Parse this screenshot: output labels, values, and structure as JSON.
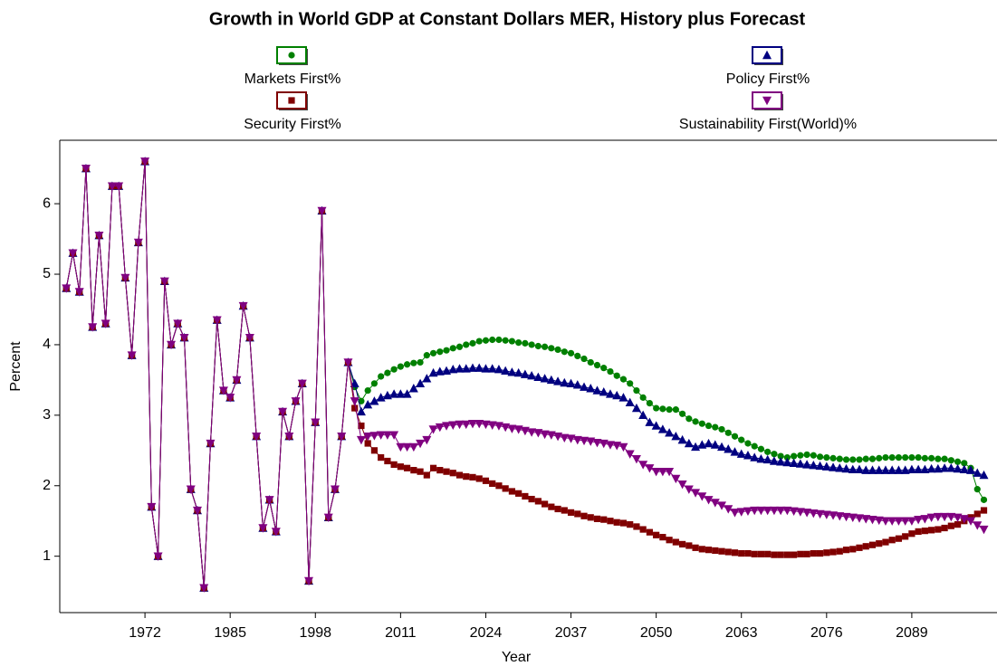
{
  "chart_data": {
    "type": "line",
    "title": "Growth in World GDP at Constant Dollars MER, History plus Forecast",
    "x_label": "Year",
    "y_label": "Percent",
    "xlim": [
      1959,
      2102
    ],
    "ylim": [
      0.2,
      6.9
    ],
    "xticks": [
      1972,
      1985,
      1998,
      2011,
      2024,
      2037,
      2050,
      2063,
      2076,
      2089
    ],
    "yticks": [
      1,
      2,
      3,
      4,
      5,
      6
    ],
    "legend": "top",
    "x": [
      1960,
      1961,
      1962,
      1963,
      1964,
      1965,
      1966,
      1967,
      1968,
      1969,
      1970,
      1971,
      1972,
      1973,
      1974,
      1975,
      1976,
      1977,
      1978,
      1979,
      1980,
      1981,
      1982,
      1983,
      1984,
      1985,
      1986,
      1987,
      1988,
      1989,
      1990,
      1991,
      1992,
      1993,
      1994,
      1995,
      1996,
      1997,
      1998,
      1999,
      2000,
      2001,
      2002,
      2003,
      2004,
      2005,
      2006,
      2007,
      2008,
      2009,
      2010,
      2011,
      2012,
      2013,
      2014,
      2015,
      2016,
      2017,
      2018,
      2019,
      2020,
      2021,
      2022,
      2023,
      2024,
      2025,
      2026,
      2027,
      2028,
      2029,
      2030,
      2031,
      2032,
      2033,
      2034,
      2035,
      2036,
      2037,
      2038,
      2039,
      2040,
      2041,
      2042,
      2043,
      2044,
      2045,
      2046,
      2047,
      2048,
      2049,
      2050,
      2051,
      2052,
      2053,
      2054,
      2055,
      2056,
      2057,
      2058,
      2059,
      2060,
      2061,
      2062,
      2063,
      2064,
      2065,
      2066,
      2067,
      2068,
      2069,
      2070,
      2071,
      2072,
      2073,
      2074,
      2075,
      2076,
      2077,
      2078,
      2079,
      2080,
      2081,
      2082,
      2083,
      2084,
      2085,
      2086,
      2087,
      2088,
      2089,
      2090,
      2091,
      2092,
      2093,
      2094,
      2095,
      2096,
      2097,
      2098,
      2099,
      2100
    ],
    "series": [
      {
        "name": "Markets First%",
        "color": "#008000",
        "marker": "circle",
        "values": [
          4.8,
          5.3,
          4.75,
          6.5,
          4.25,
          5.55,
          4.3,
          6.25,
          6.25,
          4.95,
          3.85,
          5.45,
          6.6,
          1.7,
          1.0,
          4.9,
          4.0,
          4.3,
          4.1,
          1.95,
          1.65,
          0.55,
          2.6,
          4.35,
          3.35,
          3.25,
          3.5,
          4.55,
          4.1,
          2.7,
          1.4,
          1.8,
          1.35,
          3.05,
          2.7,
          3.2,
          3.45,
          0.65,
          2.9,
          5.9,
          1.55,
          1.95,
          2.7,
          3.75,
          3.4,
          3.2,
          3.35,
          3.45,
          3.55,
          3.6,
          3.65,
          3.69,
          3.72,
          3.74,
          3.75,
          3.85,
          3.88,
          3.9,
          3.92,
          3.95,
          3.97,
          4.0,
          4.02,
          4.05,
          4.06,
          4.07,
          4.07,
          4.06,
          4.05,
          4.03,
          4.02,
          4.0,
          3.98,
          3.97,
          3.95,
          3.93,
          3.9,
          3.88,
          3.84,
          3.8,
          3.75,
          3.71,
          3.67,
          3.62,
          3.56,
          3.51,
          3.45,
          3.35,
          3.25,
          3.17,
          3.1,
          3.09,
          3.08,
          3.08,
          3.02,
          2.95,
          2.91,
          2.88,
          2.85,
          2.83,
          2.8,
          2.75,
          2.7,
          2.65,
          2.6,
          2.56,
          2.52,
          2.48,
          2.45,
          2.42,
          2.4,
          2.42,
          2.43,
          2.44,
          2.43,
          2.41,
          2.4,
          2.39,
          2.38,
          2.37,
          2.37,
          2.37,
          2.38,
          2.38,
          2.39,
          2.4,
          2.4,
          2.4,
          2.4,
          2.4,
          2.4,
          2.39,
          2.39,
          2.38,
          2.38,
          2.36,
          2.34,
          2.32,
          2.25,
          1.95,
          1.8
        ]
      },
      {
        "name": "Policy First%",
        "color": "#000080",
        "marker": "triangle-up",
        "values": [
          4.8,
          5.3,
          4.75,
          6.5,
          4.25,
          5.55,
          4.3,
          6.25,
          6.25,
          4.95,
          3.85,
          5.45,
          6.6,
          1.7,
          1.0,
          4.9,
          4.0,
          4.3,
          4.1,
          1.95,
          1.65,
          0.55,
          2.6,
          4.35,
          3.35,
          3.25,
          3.5,
          4.55,
          4.1,
          2.7,
          1.4,
          1.8,
          1.35,
          3.05,
          2.7,
          3.2,
          3.45,
          0.65,
          2.9,
          5.9,
          1.55,
          1.95,
          2.7,
          3.75,
          3.45,
          3.05,
          3.15,
          3.2,
          3.25,
          3.28,
          3.3,
          3.3,
          3.3,
          3.38,
          3.45,
          3.52,
          3.6,
          3.62,
          3.63,
          3.65,
          3.66,
          3.66,
          3.67,
          3.67,
          3.66,
          3.66,
          3.65,
          3.63,
          3.61,
          3.6,
          3.58,
          3.56,
          3.54,
          3.52,
          3.5,
          3.48,
          3.46,
          3.45,
          3.43,
          3.4,
          3.38,
          3.35,
          3.33,
          3.3,
          3.28,
          3.25,
          3.18,
          3.1,
          3.0,
          2.9,
          2.85,
          2.8,
          2.75,
          2.7,
          2.65,
          2.6,
          2.55,
          2.58,
          2.6,
          2.58,
          2.55,
          2.52,
          2.48,
          2.45,
          2.43,
          2.4,
          2.38,
          2.37,
          2.35,
          2.34,
          2.33,
          2.32,
          2.31,
          2.3,
          2.29,
          2.28,
          2.27,
          2.26,
          2.25,
          2.24,
          2.23,
          2.23,
          2.22,
          2.22,
          2.22,
          2.22,
          2.22,
          2.22,
          2.22,
          2.23,
          2.23,
          2.23,
          2.24,
          2.24,
          2.25,
          2.25,
          2.24,
          2.23,
          2.22,
          2.18,
          2.15
        ]
      },
      {
        "name": "Security First%",
        "color": "#800000",
        "marker": "square",
        "values": [
          4.8,
          5.3,
          4.75,
          6.5,
          4.25,
          5.55,
          4.3,
          6.25,
          6.25,
          4.95,
          3.85,
          5.45,
          6.6,
          1.7,
          1.0,
          4.9,
          4.0,
          4.3,
          4.1,
          1.95,
          1.65,
          0.55,
          2.6,
          4.35,
          3.35,
          3.25,
          3.5,
          4.55,
          4.1,
          2.7,
          1.4,
          1.8,
          1.35,
          3.05,
          2.7,
          3.2,
          3.45,
          0.65,
          2.9,
          5.9,
          1.55,
          1.95,
          2.7,
          3.75,
          3.1,
          2.85,
          2.6,
          2.5,
          2.4,
          2.35,
          2.3,
          2.27,
          2.25,
          2.22,
          2.2,
          2.15,
          2.25,
          2.22,
          2.2,
          2.18,
          2.15,
          2.13,
          2.12,
          2.1,
          2.07,
          2.03,
          2.0,
          1.96,
          1.92,
          1.89,
          1.85,
          1.81,
          1.78,
          1.74,
          1.7,
          1.67,
          1.65,
          1.62,
          1.6,
          1.57,
          1.55,
          1.53,
          1.52,
          1.5,
          1.48,
          1.47,
          1.45,
          1.42,
          1.38,
          1.34,
          1.3,
          1.27,
          1.23,
          1.2,
          1.17,
          1.15,
          1.12,
          1.1,
          1.09,
          1.08,
          1.07,
          1.06,
          1.05,
          1.04,
          1.04,
          1.03,
          1.03,
          1.03,
          1.02,
          1.02,
          1.02,
          1.02,
          1.03,
          1.03,
          1.04,
          1.04,
          1.05,
          1.06,
          1.07,
          1.09,
          1.1,
          1.12,
          1.14,
          1.16,
          1.18,
          1.2,
          1.23,
          1.25,
          1.28,
          1.32,
          1.35,
          1.36,
          1.37,
          1.38,
          1.4,
          1.43,
          1.45,
          1.5,
          1.55,
          1.6,
          1.65
        ]
      },
      {
        "name": "Sustainability First(World)%",
        "color": "#800080",
        "marker": "triangle-down",
        "values": [
          4.8,
          5.3,
          4.75,
          6.5,
          4.25,
          5.55,
          4.3,
          6.25,
          6.25,
          4.95,
          3.85,
          5.45,
          6.6,
          1.7,
          1.0,
          4.9,
          4.0,
          4.3,
          4.1,
          1.95,
          1.65,
          0.55,
          2.6,
          4.35,
          3.35,
          3.25,
          3.5,
          4.55,
          4.1,
          2.7,
          1.4,
          1.8,
          1.35,
          3.05,
          2.7,
          3.2,
          3.45,
          0.65,
          2.9,
          5.9,
          1.55,
          1.95,
          2.7,
          3.75,
          3.2,
          2.65,
          2.7,
          2.71,
          2.72,
          2.72,
          2.72,
          2.55,
          2.55,
          2.55,
          2.6,
          2.65,
          2.8,
          2.83,
          2.85,
          2.86,
          2.87,
          2.87,
          2.88,
          2.88,
          2.87,
          2.86,
          2.85,
          2.83,
          2.81,
          2.8,
          2.78,
          2.76,
          2.75,
          2.73,
          2.72,
          2.7,
          2.68,
          2.67,
          2.65,
          2.64,
          2.63,
          2.61,
          2.6,
          2.58,
          2.57,
          2.55,
          2.45,
          2.38,
          2.3,
          2.25,
          2.2,
          2.2,
          2.2,
          2.1,
          2.02,
          1.95,
          1.9,
          1.85,
          1.8,
          1.76,
          1.72,
          1.67,
          1.62,
          1.63,
          1.64,
          1.65,
          1.65,
          1.65,
          1.65,
          1.65,
          1.65,
          1.64,
          1.63,
          1.62,
          1.61,
          1.6,
          1.59,
          1.58,
          1.57,
          1.56,
          1.55,
          1.54,
          1.53,
          1.52,
          1.51,
          1.5,
          1.5,
          1.5,
          1.5,
          1.5,
          1.52,
          1.53,
          1.55,
          1.56,
          1.56,
          1.56,
          1.55,
          1.53,
          1.5,
          1.44,
          1.38
        ]
      }
    ]
  }
}
